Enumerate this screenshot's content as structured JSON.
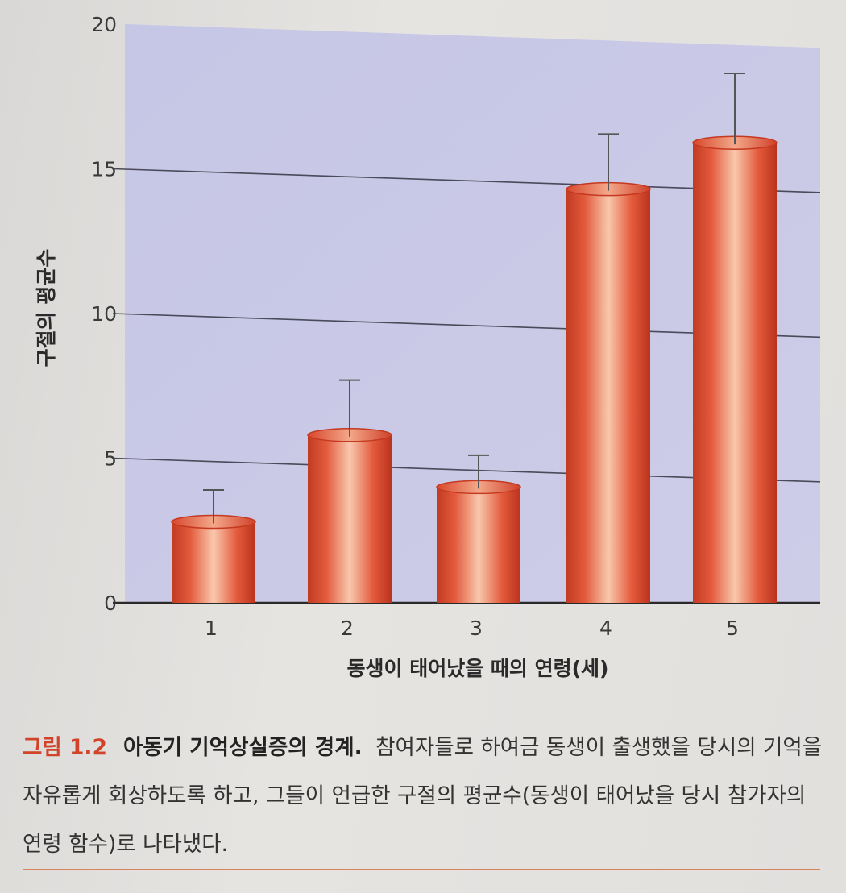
{
  "chart_data": {
    "type": "bar",
    "categories": [
      "1",
      "2",
      "3",
      "4",
      "5"
    ],
    "values": [
      2.8,
      5.8,
      4.0,
      14.3,
      15.9
    ],
    "error_upper": [
      3.9,
      7.7,
      5.1,
      16.2,
      18.3
    ],
    "xlabel": "동생이 태어났을 때의 연령(세)",
    "ylabel": "구절의 평균수",
    "ylim": [
      0,
      20
    ],
    "yticks": [
      "0",
      "5",
      "10",
      "15",
      "20"
    ],
    "grid": true,
    "colors": {
      "plot_background": "#c9c9e6",
      "bar": "#e0553a",
      "bar_highlight": "#f6c0a4",
      "bar_dark": "#b8341f",
      "gridline": "#4a4a5a"
    }
  },
  "caption": {
    "number": "그림 1.2",
    "title": "아동기 기억상실증의 경계.",
    "text": "참여자들로 하여금 동생이 출생했을 당시의 기억을 자유롭게 회상하도록 하고, 그들이 언급한 구절의 평균수(동생이 태어났을 당시 참가자의 연령 함수)로 나타냈다."
  }
}
